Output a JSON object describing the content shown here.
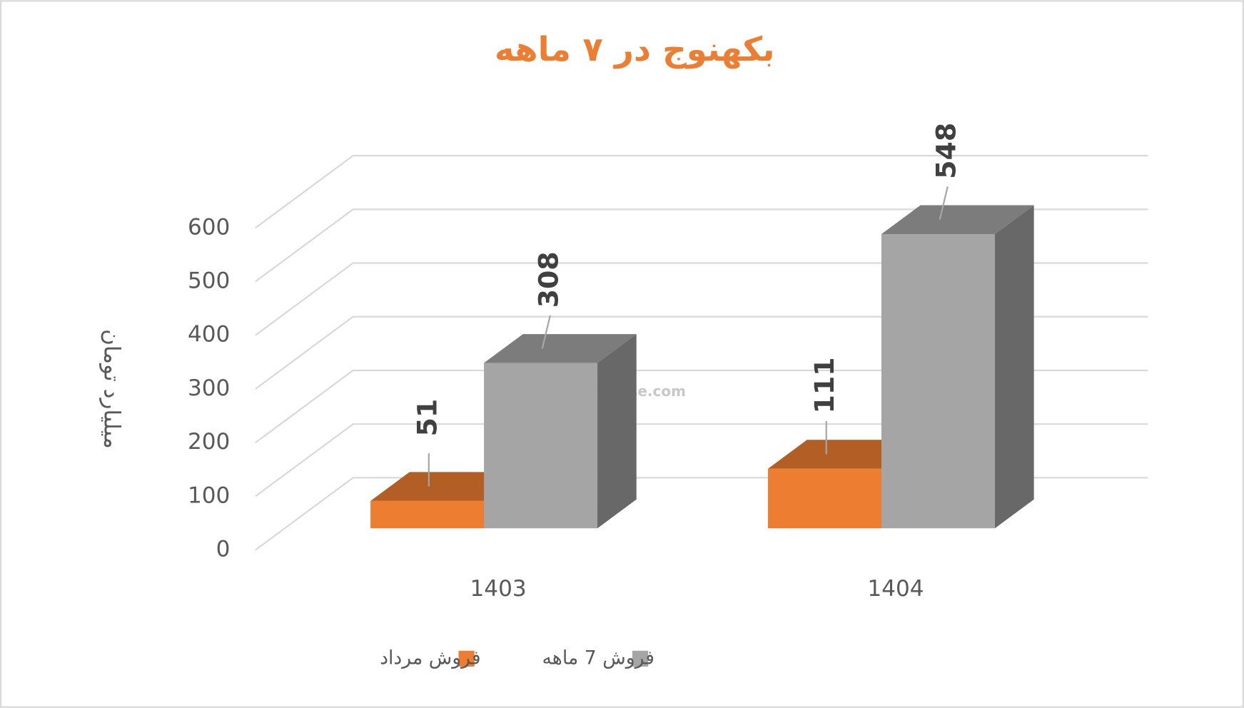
{
  "chart_data": {
    "type": "bar3d",
    "title": "بکهنوج در ۷ ماهه",
    "y_label": "میلیارد تومان",
    "categories": [
      "1403",
      "1404"
    ],
    "series": [
      {
        "name": "فروش مرداد",
        "color": "#ed7d31",
        "values": [
          51,
          111
        ]
      },
      {
        "name": "فروش 7  ماهه",
        "color": "#a5a5a5",
        "values": [
          308,
          548
        ]
      }
    ],
    "ylim": [
      0,
      600
    ],
    "yticks": [
      0,
      100,
      200,
      300,
      400,
      500,
      600
    ],
    "grid": true,
    "legend": "bottom",
    "watermark": "nabzebourse.com"
  }
}
